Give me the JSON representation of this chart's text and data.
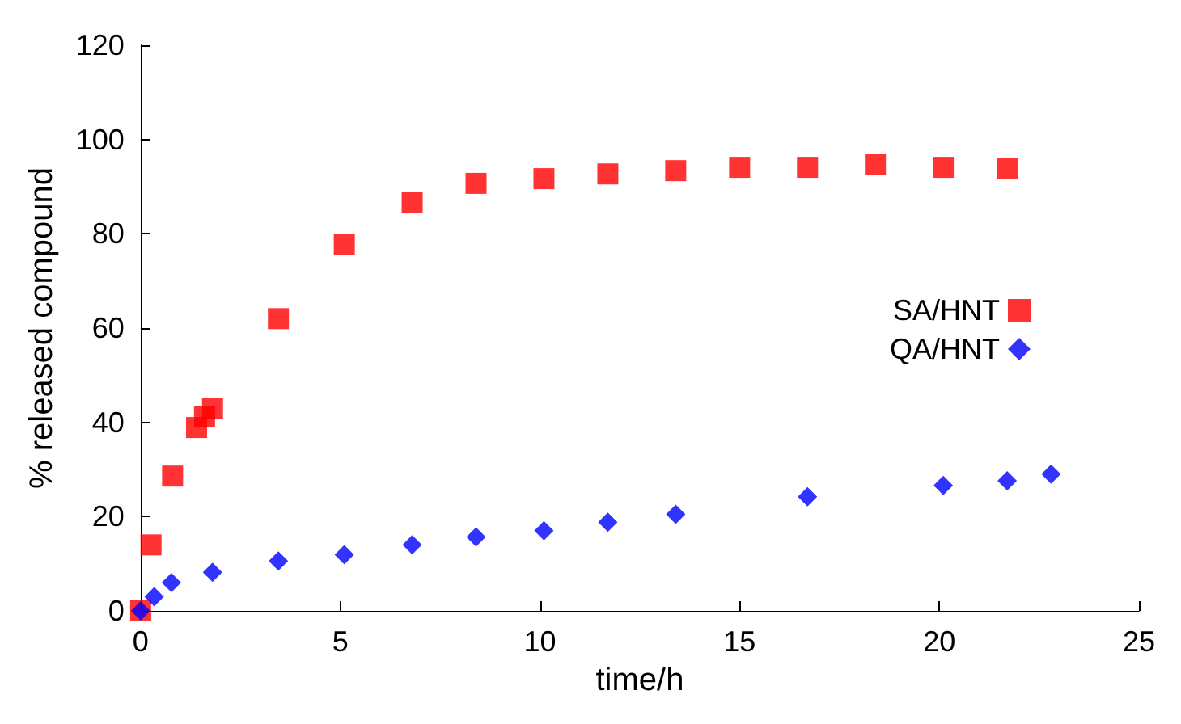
{
  "chart_data": {
    "type": "scatter",
    "xlabel": "time/h",
    "ylabel": "% released compound",
    "xlim": [
      0,
      25
    ],
    "xticks": [
      0,
      5,
      10,
      15,
      20,
      25
    ],
    "ylim": [
      0,
      120
    ],
    "yticks": [
      0,
      20,
      40,
      60,
      80,
      100,
      120
    ],
    "grid": false,
    "legend": "right",
    "series": [
      {
        "name": "SA/HNT",
        "color": "#ff0000",
        "marker": "square",
        "x": [
          0,
          0.26,
          0.8,
          1.4,
          1.6,
          1.8,
          3.45,
          5.1,
          6.8,
          8.4,
          10.1,
          11.7,
          13.4,
          15,
          16.7,
          18.4,
          20.1,
          21.7
        ],
        "values": [
          0,
          14,
          28.6,
          38.9,
          41.3,
          43,
          62,
          77.7,
          86.6,
          90.7,
          91.7,
          92.7,
          93.4,
          94.1,
          94.1,
          94.8,
          94.1,
          93.8
        ]
      },
      {
        "name": "QA/HNT",
        "color": "#0000ff",
        "marker": "diamond",
        "x": [
          0,
          0.34,
          0.77,
          1.8,
          3.45,
          5.1,
          6.8,
          8.4,
          10.1,
          11.7,
          13.4,
          16.7,
          20.1,
          21.7,
          22.8
        ],
        "values": [
          0,
          3,
          6,
          8.2,
          10.6,
          11.9,
          14,
          15.7,
          17,
          18.8,
          20.5,
          24.2,
          26.6,
          27.6,
          29
        ]
      }
    ]
  }
}
